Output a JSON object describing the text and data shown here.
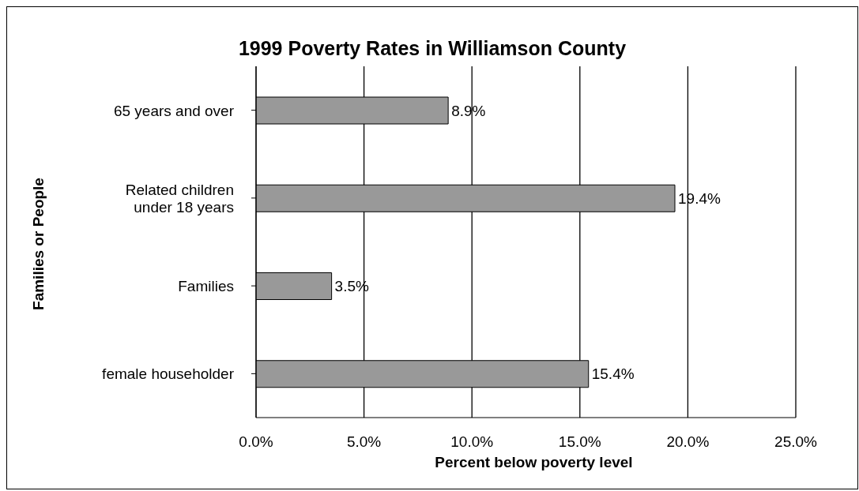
{
  "chart_data": {
    "type": "bar",
    "orientation": "horizontal",
    "title": "1999 Poverty Rates in Williamson County",
    "xlabel": "Percent below poverty level",
    "ylabel": "Families or People",
    "categories": [
      "65 years and over",
      "Related children under 18 years",
      "Families",
      "female householder"
    ],
    "values": [
      8.9,
      19.4,
      3.5,
      15.4
    ],
    "value_labels": [
      "8.9%",
      "19.4%",
      "3.5%",
      "15.4%"
    ],
    "color": "#999999",
    "xlim": [
      0,
      25
    ],
    "xticks": [
      {
        "value": 0,
        "label": "0.0%"
      },
      {
        "value": 5,
        "label": "5.0%"
      },
      {
        "value": 10,
        "label": "10.0%"
      },
      {
        "value": 15,
        "label": "15.0%"
      },
      {
        "value": 20,
        "label": "20.0%"
      },
      {
        "value": 25,
        "label": "25.0%"
      }
    ],
    "grid": "x"
  }
}
